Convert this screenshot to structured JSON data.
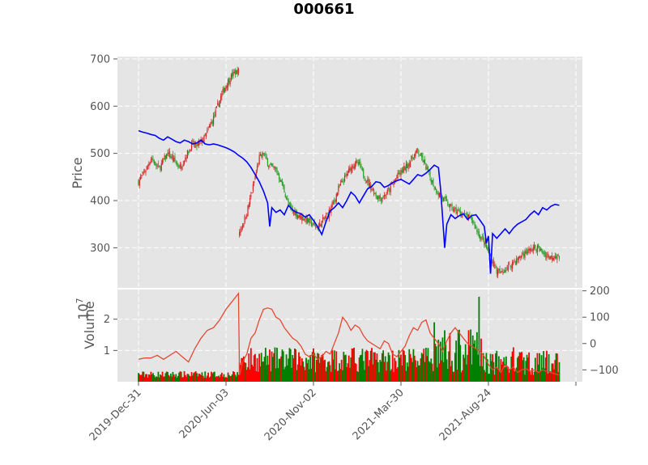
{
  "chart_data": {
    "type": "candlestick",
    "title": "000661",
    "price_panel": {
      "ylabel": "Price",
      "yticks": [
        "300",
        "400",
        "500",
        "600",
        "700"
      ],
      "ylim": [
        215,
        705
      ],
      "candle_up_color": "#d62728",
      "candle_down_color": "#2ca02c",
      "close_path": [
        [
          0,
          440
        ],
        [
          4,
          455
        ],
        [
          8,
          470
        ],
        [
          12,
          490
        ],
        [
          16,
          478
        ],
        [
          20,
          468
        ],
        [
          24,
          485
        ],
        [
          28,
          500
        ],
        [
          32,
          490
        ],
        [
          36,
          480
        ],
        [
          40,
          470
        ],
        [
          44,
          488
        ],
        [
          48,
          505
        ],
        [
          52,
          520
        ],
        [
          56,
          515
        ],
        [
          60,
          525
        ],
        [
          64,
          535
        ],
        [
          68,
          555
        ],
        [
          72,
          575
        ],
        [
          76,
          600
        ],
        [
          80,
          625
        ],
        [
          84,
          645
        ],
        [
          88,
          660
        ],
        [
          92,
          670
        ],
        [
          96,
          675
        ],
        [
          97,
          335
        ],
        [
          100,
          350
        ],
        [
          104,
          375
        ],
        [
          108,
          410
        ],
        [
          112,
          450
        ],
        [
          116,
          490
        ],
        [
          120,
          500
        ],
        [
          124,
          480
        ],
        [
          128,
          470
        ],
        [
          132,
          465
        ],
        [
          136,
          445
        ],
        [
          140,
          420
        ],
        [
          144,
          390
        ],
        [
          148,
          378
        ],
        [
          152,
          372
        ],
        [
          156,
          365
        ],
        [
          160,
          362
        ],
        [
          164,
          355
        ],
        [
          168,
          348
        ],
        [
          172,
          342
        ],
        [
          176,
          355
        ],
        [
          180,
          365
        ],
        [
          184,
          380
        ],
        [
          188,
          400
        ],
        [
          192,
          425
        ],
        [
          196,
          440
        ],
        [
          200,
          455
        ],
        [
          204,
          470
        ],
        [
          208,
          480
        ],
        [
          212,
          475
        ],
        [
          216,
          455
        ],
        [
          220,
          440
        ],
        [
          224,
          425
        ],
        [
          228,
          412
        ],
        [
          232,
          405
        ],
        [
          236,
          410
        ],
        [
          240,
          420
        ],
        [
          244,
          435
        ],
        [
          248,
          450
        ],
        [
          252,
          460
        ],
        [
          256,
          470
        ],
        [
          260,
          480
        ],
        [
          264,
          495
        ],
        [
          268,
          505
        ],
        [
          272,
          490
        ],
        [
          276,
          470
        ],
        [
          280,
          450
        ],
        [
          284,
          430
        ],
        [
          288,
          415
        ],
        [
          292,
          405
        ],
        [
          296,
          395
        ],
        [
          300,
          385
        ],
        [
          304,
          378
        ],
        [
          308,
          375
        ],
        [
          312,
          370
        ],
        [
          316,
          365
        ],
        [
          320,
          360
        ],
        [
          324,
          340
        ],
        [
          328,
          325
        ],
        [
          332,
          310
        ],
        [
          336,
          290
        ],
        [
          340,
          270
        ],
        [
          344,
          250
        ],
        [
          348,
          245
        ],
        [
          352,
          255
        ],
        [
          356,
          260
        ],
        [
          360,
          270
        ],
        [
          364,
          275
        ],
        [
          368,
          285
        ],
        [
          372,
          290
        ],
        [
          376,
          295
        ],
        [
          380,
          300
        ],
        [
          384,
          298
        ],
        [
          388,
          290
        ],
        [
          392,
          285
        ],
        [
          396,
          280
        ],
        [
          400,
          285
        ],
        [
          404,
          280
        ]
      ],
      "moving_average": {
        "color": "#0000ff",
        "points": [
          [
            0,
            548
          ],
          [
            4,
            545
          ],
          [
            8,
            543
          ],
          [
            12,
            540
          ],
          [
            16,
            538
          ],
          [
            20,
            532
          ],
          [
            24,
            528
          ],
          [
            28,
            535
          ],
          [
            32,
            530
          ],
          [
            36,
            525
          ],
          [
            40,
            522
          ],
          [
            44,
            528
          ],
          [
            48,
            525
          ],
          [
            52,
            520
          ],
          [
            56,
            522
          ],
          [
            60,
            528
          ],
          [
            64,
            520
          ],
          [
            68,
            518
          ],
          [
            72,
            520
          ],
          [
            76,
            518
          ],
          [
            80,
            515
          ],
          [
            84,
            512
          ],
          [
            88,
            508
          ],
          [
            92,
            503
          ],
          [
            96,
            496
          ],
          [
            100,
            490
          ],
          [
            104,
            482
          ],
          [
            108,
            470
          ],
          [
            112,
            455
          ],
          [
            116,
            440
          ],
          [
            120,
            420
          ],
          [
            124,
            395
          ],
          [
            126,
            345
          ],
          [
            128,
            385
          ],
          [
            132,
            375
          ],
          [
            136,
            380
          ],
          [
            140,
            370
          ],
          [
            144,
            390
          ],
          [
            148,
            380
          ],
          [
            152,
            375
          ],
          [
            156,
            372
          ],
          [
            160,
            365
          ],
          [
            164,
            370
          ],
          [
            168,
            358
          ],
          [
            172,
            345
          ],
          [
            176,
            328
          ],
          [
            180,
            355
          ],
          [
            184,
            378
          ],
          [
            188,
            385
          ],
          [
            192,
            395
          ],
          [
            196,
            385
          ],
          [
            200,
            400
          ],
          [
            204,
            418
          ],
          [
            208,
            410
          ],
          [
            212,
            395
          ],
          [
            216,
            410
          ],
          [
            220,
            425
          ],
          [
            224,
            430
          ],
          [
            228,
            440
          ],
          [
            232,
            438
          ],
          [
            236,
            428
          ],
          [
            240,
            432
          ],
          [
            244,
            438
          ],
          [
            248,
            442
          ],
          [
            252,
            445
          ],
          [
            256,
            440
          ],
          [
            260,
            435
          ],
          [
            264,
            445
          ],
          [
            268,
            455
          ],
          [
            272,
            452
          ],
          [
            276,
            458
          ],
          [
            280,
            466
          ],
          [
            284,
            475
          ],
          [
            288,
            470
          ],
          [
            290,
            425
          ],
          [
            292,
            365
          ],
          [
            294,
            300
          ],
          [
            296,
            350
          ],
          [
            300,
            370
          ],
          [
            304,
            362
          ],
          [
            308,
            368
          ],
          [
            312,
            372
          ],
          [
            316,
            360
          ],
          [
            320,
            368
          ],
          [
            324,
            370
          ],
          [
            328,
            358
          ],
          [
            332,
            345
          ],
          [
            334,
            310
          ],
          [
            336,
            325
          ],
          [
            338,
            245
          ],
          [
            340,
            330
          ],
          [
            344,
            320
          ],
          [
            348,
            330
          ],
          [
            352,
            340
          ],
          [
            356,
            330
          ],
          [
            360,
            342
          ],
          [
            364,
            350
          ],
          [
            368,
            355
          ],
          [
            372,
            360
          ],
          [
            376,
            370
          ],
          [
            380,
            378
          ],
          [
            384,
            370
          ],
          [
            388,
            385
          ],
          [
            392,
            380
          ],
          [
            396,
            388
          ],
          [
            400,
            392
          ],
          [
            404,
            390
          ]
        ]
      }
    },
    "volume_panel": {
      "ylabel": "Volume",
      "exponent_label": "10",
      "exponent": "7",
      "yticks_left": [
        "1",
        "2"
      ],
      "yticks_right": [
        "−100",
        "0",
        "100",
        "200"
      ],
      "ylim_left": [
        0,
        2.95
      ],
      "ylim_right": [
        -145,
        205
      ],
      "indicator_color": "#e24a33",
      "indicator": [
        [
          0,
          -60
        ],
        [
          6,
          -55
        ],
        [
          12,
          -55
        ],
        [
          18,
          -45
        ],
        [
          24,
          -60
        ],
        [
          30,
          -45
        ],
        [
          36,
          -30
        ],
        [
          42,
          -50
        ],
        [
          48,
          -70
        ],
        [
          54,
          -20
        ],
        [
          60,
          20
        ],
        [
          66,
          50
        ],
        [
          72,
          60
        ],
        [
          78,
          90
        ],
        [
          84,
          130
        ],
        [
          90,
          160
        ],
        [
          94,
          180
        ],
        [
          96,
          190
        ],
        [
          97,
          -120
        ],
        [
          100,
          -70
        ],
        [
          104,
          -40
        ],
        [
          108,
          20
        ],
        [
          112,
          40
        ],
        [
          116,
          90
        ],
        [
          120,
          130
        ],
        [
          124,
          135
        ],
        [
          128,
          130
        ],
        [
          132,
          100
        ],
        [
          136,
          90
        ],
        [
          140,
          60
        ],
        [
          144,
          40
        ],
        [
          148,
          20
        ],
        [
          152,
          10
        ],
        [
          156,
          -10
        ],
        [
          160,
          -40
        ],
        [
          164,
          -50
        ],
        [
          168,
          -40
        ],
        [
          172,
          -60
        ],
        [
          176,
          -50
        ],
        [
          180,
          -30
        ],
        [
          184,
          -40
        ],
        [
          188,
          0
        ],
        [
          192,
          40
        ],
        [
          196,
          100
        ],
        [
          200,
          80
        ],
        [
          204,
          50
        ],
        [
          208,
          70
        ],
        [
          212,
          60
        ],
        [
          216,
          30
        ],
        [
          220,
          10
        ],
        [
          224,
          0
        ],
        [
          228,
          -10
        ],
        [
          232,
          -20
        ],
        [
          236,
          10
        ],
        [
          240,
          0
        ],
        [
          244,
          -40
        ],
        [
          248,
          -50
        ],
        [
          252,
          -30
        ],
        [
          256,
          -10
        ],
        [
          260,
          30
        ],
        [
          264,
          60
        ],
        [
          268,
          50
        ],
        [
          272,
          80
        ],
        [
          276,
          90
        ],
        [
          280,
          40
        ],
        [
          284,
          20
        ],
        [
          288,
          0
        ],
        [
          292,
          -30
        ],
        [
          296,
          10
        ],
        [
          300,
          40
        ],
        [
          304,
          60
        ],
        [
          308,
          40
        ],
        [
          312,
          20
        ],
        [
          316,
          0
        ],
        [
          320,
          -10
        ],
        [
          324,
          -20
        ],
        [
          328,
          -30
        ],
        [
          332,
          -50
        ],
        [
          336,
          -80
        ],
        [
          340,
          -100
        ],
        [
          344,
          -90
        ],
        [
          348,
          -110
        ],
        [
          352,
          -80
        ],
        [
          356,
          -100
        ],
        [
          360,
          -90
        ],
        [
          364,
          -110
        ],
        [
          368,
          -100
        ],
        [
          372,
          -95
        ],
        [
          376,
          -105
        ],
        [
          380,
          -100
        ],
        [
          384,
          -110
        ],
        [
          388,
          -100
        ],
        [
          392,
          -105
        ],
        [
          396,
          -110
        ],
        [
          400,
          -115
        ],
        [
          404,
          -120
        ]
      ]
    },
    "x_axis": {
      "range": [
        0,
        420
      ],
      "ticks": [
        {
          "label": "2019-Dec-31",
          "x": 0
        },
        {
          "label": "2020-Jun-03",
          "x": 84
        },
        {
          "label": "2020-Nov-02",
          "x": 168
        },
        {
          "label": "2021-Mar-30",
          "x": 252
        },
        {
          "label": "2021-Aug-24",
          "x": 336
        },
        {
          "label": "",
          "x": 420
        }
      ]
    }
  }
}
